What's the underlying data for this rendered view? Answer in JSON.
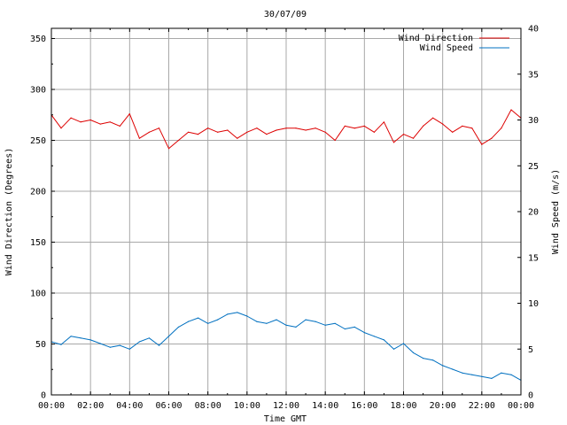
{
  "chart_data": {
    "type": "line",
    "title": "30/07/09",
    "xlabel": "Time GMT",
    "ylabel_left": "Wind Direction (Degrees)",
    "ylabel_right": "Wind Speed (m/s)",
    "x_ticks": [
      "00:00",
      "02:00",
      "04:00",
      "06:00",
      "08:00",
      "10:00",
      "12:00",
      "14:00",
      "16:00",
      "18:00",
      "20:00",
      "22:00",
      "00:00"
    ],
    "y_left_ticks": [
      "0",
      "50",
      "100",
      "150",
      "200",
      "250",
      "300",
      "350"
    ],
    "y_right_ticks": [
      "0",
      "5",
      "10",
      "15",
      "20",
      "25",
      "30",
      "35",
      "40"
    ],
    "ylim_left": [
      0,
      360
    ],
    "ylim_right": [
      0,
      40
    ],
    "xlim_hours": [
      0,
      24
    ],
    "grid": true,
    "legend_position": "top-right",
    "series": [
      {
        "name": "Wind Direction",
        "axis": "left",
        "color": "#dd0000",
        "x": [
          0,
          0.5,
          1,
          1.5,
          2,
          2.5,
          3,
          3.5,
          4,
          4.5,
          5,
          5.5,
          6,
          6.5,
          7,
          7.5,
          8,
          8.5,
          9,
          9.5,
          10,
          10.5,
          11,
          11.5,
          12,
          12.5,
          13,
          13.5,
          14,
          14.5,
          15,
          15.5,
          16,
          16.5,
          17,
          17.5,
          18,
          18.5,
          19,
          19.5,
          20,
          20.5,
          21,
          21.5,
          22,
          22.5,
          23,
          23.5,
          24
        ],
        "values": [
          275,
          262,
          272,
          268,
          270,
          266,
          268,
          264,
          276,
          252,
          258,
          262,
          242,
          250,
          258,
          256,
          262,
          258,
          260,
          252,
          258,
          262,
          256,
          260,
          262,
          262,
          260,
          262,
          258,
          250,
          264,
          262,
          264,
          258,
          268,
          248,
          256,
          252,
          264,
          272,
          266,
          258,
          264,
          262,
          246,
          252,
          262,
          280,
          272
        ]
      },
      {
        "name": "Wind Speed",
        "axis": "right",
        "color": "#0070c0",
        "x": [
          0,
          0.5,
          1,
          1.5,
          2,
          2.5,
          3,
          3.5,
          4,
          4.5,
          5,
          5.5,
          6,
          6.5,
          7,
          7.5,
          8,
          8.5,
          9,
          9.5,
          10,
          10.5,
          11,
          11.5,
          12,
          12.5,
          13,
          13.5,
          14,
          14.5,
          15,
          15.5,
          16,
          16.5,
          17,
          17.5,
          18,
          18.5,
          19,
          19.5,
          20,
          20.5,
          21,
          21.5,
          22,
          22.5,
          23,
          23.5,
          24
        ],
        "values": [
          5.8,
          5.5,
          6.4,
          6.2,
          6.0,
          5.6,
          5.2,
          5.4,
          5.0,
          5.8,
          6.2,
          5.4,
          6.4,
          7.4,
          8.0,
          8.4,
          7.8,
          8.2,
          8.8,
          9.0,
          8.6,
          8.0,
          7.8,
          8.2,
          7.6,
          7.4,
          8.2,
          8.0,
          7.6,
          7.8,
          7.2,
          7.4,
          6.8,
          6.4,
          6.0,
          5.0,
          5.6,
          4.6,
          4.0,
          3.8,
          3.2,
          2.8,
          2.4,
          2.2,
          2.0,
          1.8,
          2.4,
          2.2,
          1.6
        ]
      }
    ]
  }
}
